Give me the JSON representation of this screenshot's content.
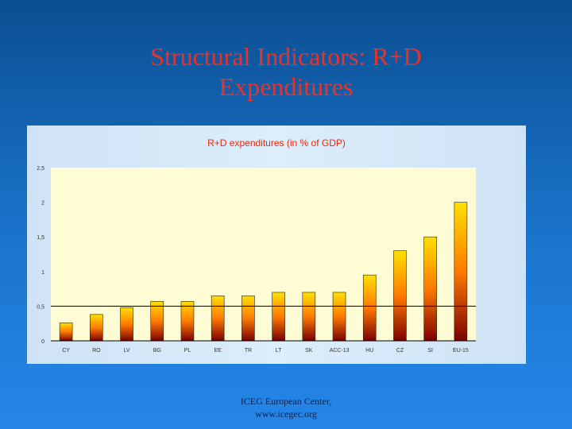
{
  "slide": {
    "title_line1": "Structural Indicators: R+D",
    "title_line2": "Expenditures"
  },
  "footer": {
    "line1": "ICEG European Center,",
    "line2": "www.icegec.org"
  },
  "colors": {
    "title": "#e8332a",
    "bar_top": "#ffe000",
    "bar_mid": "#ff7a00",
    "bar_bottom": "#7a0000",
    "chart_title": "#e8280a"
  },
  "chart_data": {
    "type": "bar",
    "title": "R+D expenditures (in % of GDP)",
    "categories": [
      "CY",
      "RO",
      "LV",
      "BG",
      "PL",
      "EE",
      "TR",
      "LT",
      "SK",
      "ACC-13",
      "HU",
      "CZ",
      "SI",
      "EU-15"
    ],
    "values": [
      0.26,
      0.38,
      0.48,
      0.57,
      0.57,
      0.65,
      0.65,
      0.7,
      0.7,
      0.7,
      0.95,
      1.3,
      1.5,
      2.0
    ],
    "ylim": [
      0,
      2.5
    ],
    "yticks": [
      "0",
      "0,5",
      "1",
      "1,5",
      "2",
      "2,5"
    ],
    "ytick_values": [
      0,
      0.5,
      1,
      1.5,
      2,
      2.5
    ],
    "grid": false
  }
}
